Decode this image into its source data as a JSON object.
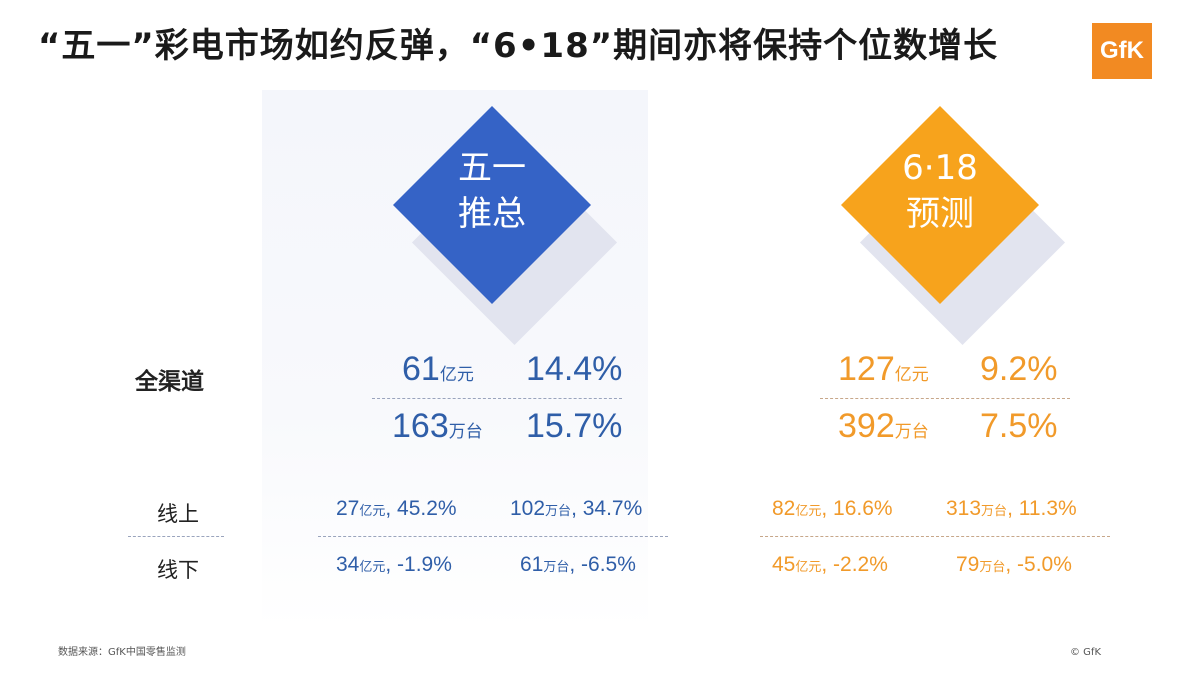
{
  "title": "“五一”彩电市场如约反弹，“6•18”期间亦将保持个位数增长",
  "logo": "GfK",
  "colors": {
    "blue": "#2f5ea8",
    "orange": "#f19a2a",
    "diamond_blue": "#3563c6",
    "diamond_orange": "#f7a31c"
  },
  "left": {
    "diamond_line1": "五一",
    "diamond_line2": "推总",
    "all_channel": {
      "amount_value": "61",
      "amount_unit": "亿元",
      "amount_growth": "14.4%",
      "volume_value": "163",
      "volume_unit": "万台",
      "volume_growth": "15.7%"
    },
    "online": {
      "amount_value": "27",
      "amount_unit": "亿元",
      "amount_growth": ", 45.2%",
      "volume_value": "102",
      "volume_unit": "万台",
      "volume_growth": ", 34.7%"
    },
    "offline": {
      "amount_value": "34",
      "amount_unit": "亿元",
      "amount_growth": ", -1.9%",
      "volume_value": "61",
      "volume_unit": "万台",
      "volume_growth": ", -6.5%"
    }
  },
  "right": {
    "diamond_line1": "6·18",
    "diamond_line2": "预测",
    "all_channel": {
      "amount_value": "127",
      "amount_unit": "亿元",
      "amount_growth": "9.2%",
      "volume_value": "392",
      "volume_unit": "万台",
      "volume_growth": "7.5%"
    },
    "online": {
      "amount_value": "82",
      "amount_unit": "亿元",
      "amount_growth": ", 16.6%",
      "volume_value": "313",
      "volume_unit": "万台",
      "volume_growth": ", 11.3%"
    },
    "offline": {
      "amount_value": "45",
      "amount_unit": "亿元",
      "amount_growth": ", -2.2%",
      "volume_value": "79",
      "volume_unit": "万台",
      "volume_growth": ", -5.0%"
    }
  },
  "row_labels": {
    "all_channel": "全渠道",
    "online": "线上",
    "offline": "线下"
  },
  "footer": {
    "source": "数据来源：GfK中国零售监测",
    "copyright": "© GfK"
  }
}
